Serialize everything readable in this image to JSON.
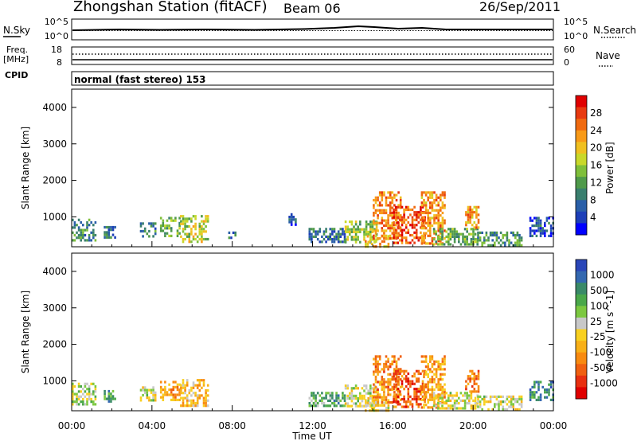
{
  "header": {
    "station": "Zhongshan Station (fitACF)",
    "beam": "Beam 06",
    "date": "26/Sep/2011"
  },
  "top_panels": {
    "nsky_label": "N.Sky",
    "nsky_ticks": [
      "10^5",
      "10^0"
    ],
    "nsearch_label": "N.Search",
    "nsearch_ticks": [
      "10^5",
      "10^0"
    ],
    "freq_label": "Freq.",
    "freq_unit": "[MHz]",
    "freq_ticks": [
      "18",
      "8"
    ],
    "nave_label": "Nave",
    "nave_ticks": [
      "60",
      "0"
    ],
    "cpid_label": "CPID",
    "cpid_text": "normal (fast stereo) 153"
  },
  "axes": {
    "xlabel": "Time UT",
    "ylabel": "Slant Range [km]",
    "x_ticks": [
      "00:00",
      "04:00",
      "08:00",
      "12:00",
      "16:00",
      "20:00",
      "00:00"
    ],
    "y_ticks": [
      "4000",
      "3000",
      "2000",
      "1000"
    ]
  },
  "power_scale": {
    "label": "Power [dB]",
    "ticks": [
      "28",
      "24",
      "20",
      "16",
      "12",
      "8",
      "4"
    ],
    "colors": [
      "#0000ff",
      "#1d3fb8",
      "#2a5fa8",
      "#3a7f6e",
      "#4f9a4a",
      "#7fbf3a",
      "#c9d82a",
      "#f0c020",
      "#f89a18",
      "#f06a10",
      "#e83a10",
      "#e00000"
    ]
  },
  "velocity_scale": {
    "label": "Velocity [m s^-1]",
    "ticks": [
      "1000",
      "500",
      "100",
      "25",
      "-25",
      "-100",
      "-500",
      "-1000"
    ],
    "colors": [
      "#2a46b8",
      "#3468b0",
      "#3a8a68",
      "#4aa84a",
      "#7cc840",
      "#c8c8c8",
      "#f8d020",
      "#f8b018",
      "#f88a10",
      "#f06010",
      "#e83010",
      "#e00000"
    ]
  },
  "chart_data": [
    {
      "type": "heatmap",
      "title": "Power",
      "xlabel": "Time UT",
      "ylabel": "Slant Range [km]",
      "xlim": [
        0,
        24
      ],
      "ylim": [
        180,
        4500
      ],
      "colorbar": {
        "label": "Power [dB]",
        "range": [
          0,
          32
        ]
      },
      "patches": [
        {
          "t0": 0.0,
          "t1": 1.2,
          "r0": 350,
          "r1": 950,
          "v": 10
        },
        {
          "t0": 1.6,
          "t1": 2.2,
          "r0": 450,
          "r1": 750,
          "v": 7
        },
        {
          "t0": 3.4,
          "t1": 4.2,
          "r0": 450,
          "r1": 850,
          "v": 9
        },
        {
          "t0": 4.4,
          "t1": 5.4,
          "r0": 450,
          "r1": 1000,
          "v": 13
        },
        {
          "t0": 5.4,
          "t1": 6.8,
          "r0": 350,
          "r1": 1050,
          "v": 17
        },
        {
          "t0": 7.8,
          "t1": 8.2,
          "r0": 400,
          "r1": 600,
          "v": 7
        },
        {
          "t0": 10.8,
          "t1": 11.2,
          "r0": 800,
          "r1": 1100,
          "v": 6
        },
        {
          "t0": 11.8,
          "t1": 13.6,
          "r0": 300,
          "r1": 700,
          "v": 8
        },
        {
          "t0": 13.6,
          "t1": 15.2,
          "r0": 300,
          "r1": 900,
          "v": 15
        },
        {
          "t0": 14.6,
          "t1": 15.8,
          "r0": 200,
          "r1": 500,
          "v": 21
        },
        {
          "t0": 15.0,
          "t1": 16.4,
          "r0": 400,
          "r1": 1700,
          "v": 24
        },
        {
          "t0": 16.0,
          "t1": 17.6,
          "r0": 300,
          "r1": 1300,
          "v": 27
        },
        {
          "t0": 17.4,
          "t1": 18.6,
          "r0": 300,
          "r1": 1700,
          "v": 23
        },
        {
          "t0": 18.0,
          "t1": 20.2,
          "r0": 250,
          "r1": 700,
          "v": 13
        },
        {
          "t0": 19.6,
          "t1": 20.3,
          "r0": 700,
          "r1": 1300,
          "v": 22
        },
        {
          "t0": 20.2,
          "t1": 22.4,
          "r0": 200,
          "r1": 600,
          "v": 11
        },
        {
          "t0": 22.8,
          "t1": 24.0,
          "r0": 500,
          "r1": 1000,
          "v": 6
        }
      ]
    },
    {
      "type": "heatmap",
      "title": "Velocity",
      "xlabel": "Time UT",
      "ylabel": "Slant Range [km]",
      "xlim": [
        0,
        24
      ],
      "ylim": [
        180,
        4500
      ],
      "colorbar": {
        "label": "Velocity [m s^-1]",
        "range": [
          -1000,
          1000
        ]
      },
      "patches": [
        {
          "t0": 0.0,
          "t1": 1.2,
          "r0": 350,
          "r1": 950,
          "v": 120
        },
        {
          "t0": 1.6,
          "t1": 2.2,
          "r0": 450,
          "r1": 750,
          "v": 500
        },
        {
          "t0": 3.4,
          "t1": 4.2,
          "r0": 450,
          "r1": 850,
          "v": 80
        },
        {
          "t0": 4.4,
          "t1": 5.4,
          "r0": 450,
          "r1": 1000,
          "v": -300
        },
        {
          "t0": 5.4,
          "t1": 6.8,
          "r0": 350,
          "r1": 1050,
          "v": -200
        },
        {
          "t0": 11.8,
          "t1": 13.6,
          "r0": 300,
          "r1": 700,
          "v": 400
        },
        {
          "t0": 13.6,
          "t1": 15.2,
          "r0": 300,
          "r1": 900,
          "v": 60
        },
        {
          "t0": 14.6,
          "t1": 15.8,
          "r0": 200,
          "r1": 500,
          "v": 0
        },
        {
          "t0": 15.0,
          "t1": 16.4,
          "r0": 400,
          "r1": 1700,
          "v": -400
        },
        {
          "t0": 16.0,
          "t1": 17.6,
          "r0": 300,
          "r1": 1300,
          "v": -600
        },
        {
          "t0": 17.4,
          "t1": 18.6,
          "r0": 300,
          "r1": 1700,
          "v": -300
        },
        {
          "t0": 18.0,
          "t1": 20.2,
          "r0": 250,
          "r1": 700,
          "v": 60
        },
        {
          "t0": 19.6,
          "t1": 20.3,
          "r0": 700,
          "r1": 1300,
          "v": -500
        },
        {
          "t0": 20.2,
          "t1": 22.4,
          "r0": 200,
          "r1": 600,
          "v": 60
        },
        {
          "t0": 22.8,
          "t1": 24.0,
          "r0": 500,
          "r1": 1000,
          "v": 600
        }
      ]
    }
  ]
}
